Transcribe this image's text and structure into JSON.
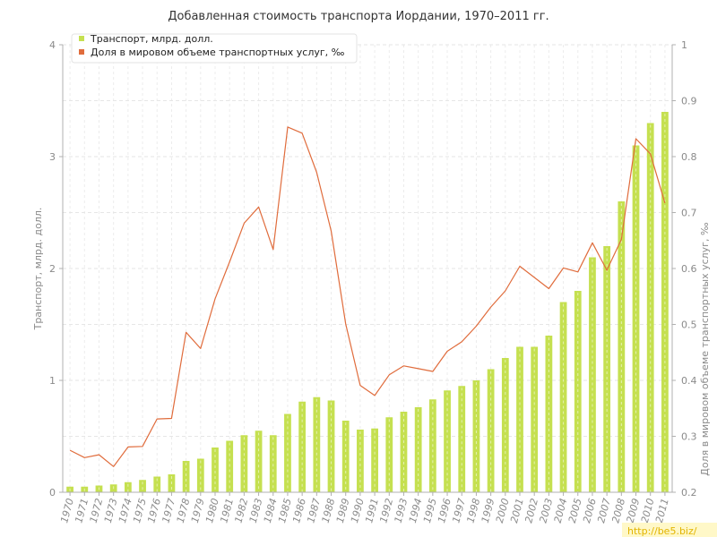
{
  "chart_data": {
    "type": "bar+line",
    "title": "Добавленная стоимость транспорта Иордании, 1970–2011 гг.",
    "xlabel": "",
    "ylabel_left": "Транспорт, млрд. долл.",
    "ylabel_right": "Доля в мировом объеме транспортных услуг, ‰",
    "ylim_left": [
      0,
      4
    ],
    "ylim_right": [
      0.2,
      1
    ],
    "yticks_left": [
      "0",
      "1",
      "2",
      "3",
      "4"
    ],
    "yticks_right": [
      "0.2",
      "0.3",
      "0.4",
      "0.5",
      "0.6",
      "0.7",
      "0.8",
      "0.9",
      "1"
    ],
    "grid": true,
    "legend_position": "top-left",
    "categories": [
      "1970",
      "1971",
      "1972",
      "1973",
      "1974",
      "1975",
      "1976",
      "1977",
      "1978",
      "1979",
      "1980",
      "1981",
      "1982",
      "1983",
      "1984",
      "1985",
      "1986",
      "1987",
      "1988",
      "1989",
      "1990",
      "1991",
      "1992",
      "1993",
      "1994",
      "1995",
      "1996",
      "1997",
      "1998",
      "1999",
      "2000",
      "2001",
      "2002",
      "2003",
      "2004",
      "2005",
      "2006",
      "2007",
      "2008",
      "2009",
      "2010",
      "2011"
    ],
    "series": [
      {
        "name": "Транспорт, млрд. долл.",
        "type": "bar",
        "axis": "left",
        "color": "#c5e050",
        "values": [
          0.05,
          0.05,
          0.06,
          0.07,
          0.09,
          0.11,
          0.14,
          0.16,
          0.28,
          0.3,
          0.4,
          0.46,
          0.51,
          0.55,
          0.51,
          0.7,
          0.81,
          0.85,
          0.82,
          0.64,
          0.56,
          0.57,
          0.67,
          0.72,
          0.76,
          0.83,
          0.91,
          0.95,
          1.0,
          1.1,
          1.2,
          1.3,
          1.3,
          1.4,
          1.7,
          1.8,
          2.1,
          2.2,
          2.6,
          3.1,
          3.3,
          3.4
        ]
      },
      {
        "name": "Доля в мировом объеме транспортных услуг, ‰",
        "type": "line",
        "axis": "right",
        "color": "#e06c3c",
        "values": [
          0.275,
          0.262,
          0.267,
          0.246,
          0.281,
          0.282,
          0.331,
          0.332,
          0.486,
          0.457,
          0.546,
          0.612,
          0.681,
          0.71,
          0.634,
          0.853,
          0.842,
          0.772,
          0.667,
          0.501,
          0.391,
          0.373,
          0.41,
          0.426,
          0.421,
          0.416,
          0.452,
          0.469,
          0.497,
          0.531,
          0.56,
          0.604,
          0.584,
          0.564,
          0.601,
          0.594,
          0.646,
          0.597,
          0.652,
          0.832,
          0.805,
          0.717
        ]
      }
    ]
  },
  "watermark": "http://be5.biz/"
}
